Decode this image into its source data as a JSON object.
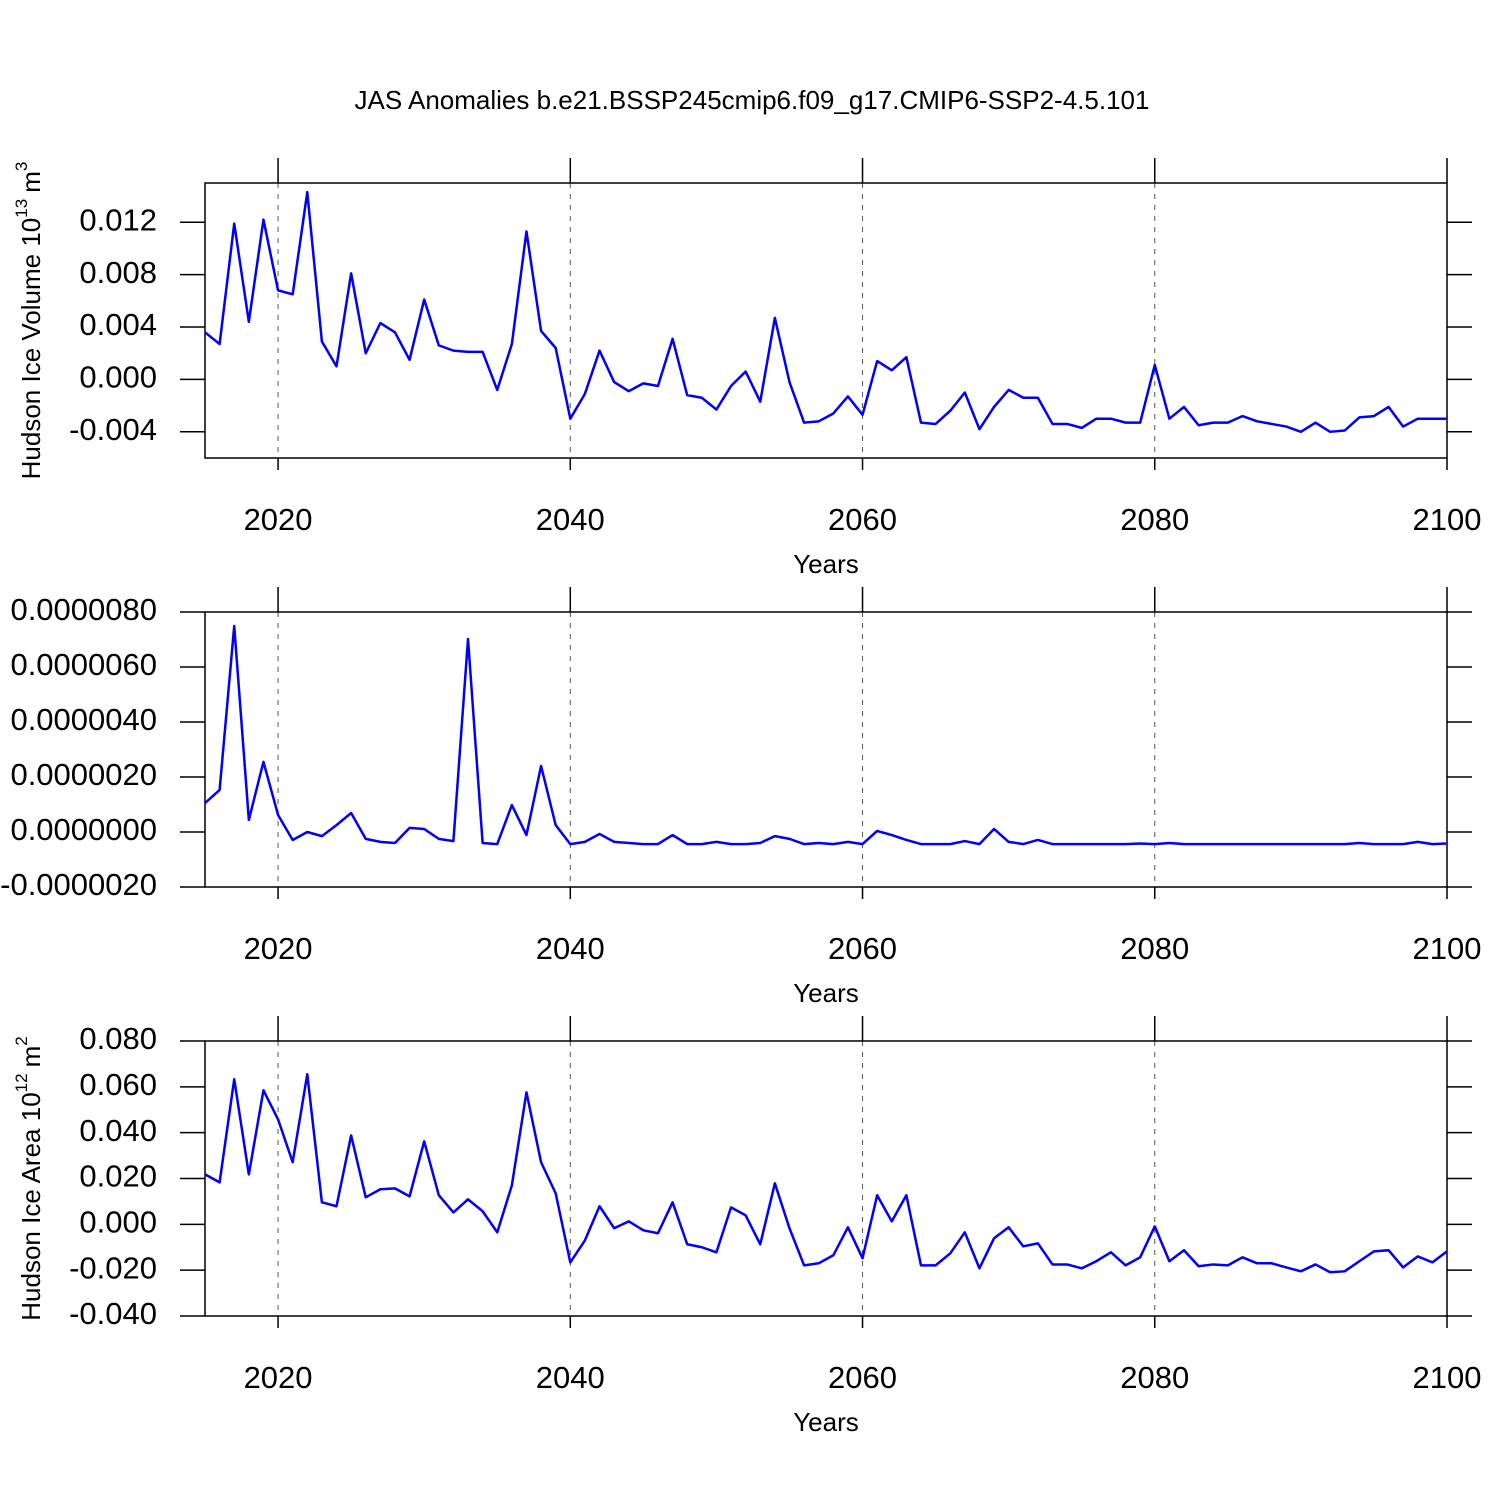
{
  "chart_data": [
    {
      "type": "line",
      "title": "JAS Anomalies b.e21.BSSP245cmip6.f09_g17.CMIP6-SSP2-4.5.101",
      "y_label": [
        "Hudson Ice Volume 10",
        "13",
        "m",
        "3"
      ],
      "x_label": "Years",
      "x": [
        2015,
        2016,
        2017,
        2018,
        2019,
        2020,
        2021,
        2022,
        2023,
        2024,
        2025,
        2026,
        2027,
        2028,
        2029,
        2030,
        2031,
        2032,
        2033,
        2034,
        2035,
        2036,
        2037,
        2038,
        2039,
        2040,
        2041,
        2042,
        2043,
        2044,
        2045,
        2046,
        2047,
        2048,
        2049,
        2050,
        2051,
        2052,
        2053,
        2054,
        2055,
        2056,
        2057,
        2058,
        2059,
        2060,
        2061,
        2062,
        2063,
        2064,
        2065,
        2066,
        2067,
        2068,
        2069,
        2070,
        2071,
        2072,
        2073,
        2074,
        2075,
        2076,
        2077,
        2078,
        2079,
        2080,
        2081,
        2082,
        2083,
        2084,
        2085,
        2086,
        2087,
        2088,
        2089,
        2090,
        2091,
        2092,
        2093,
        2094,
        2095,
        2096,
        2097,
        2098,
        2099,
        2100
      ],
      "values": [
        0.0036,
        0.0027,
        0.0119,
        0.0044,
        0.0122,
        0.0068,
        0.0065,
        0.0143,
        0.0029,
        0.001,
        0.0081,
        0.002,
        0.0043,
        0.0036,
        0.0015,
        0.0061,
        0.0026,
        0.0022,
        0.0021,
        0.0021,
        -0.0008,
        0.0027,
        0.0113,
        0.0037,
        0.0024,
        -0.003,
        -0.0011,
        0.0022,
        -0.0002,
        -0.0009,
        -0.0003,
        -0.0005,
        0.0031,
        -0.0012,
        -0.0014,
        -0.0023,
        -0.0005,
        0.0006,
        -0.0017,
        0.0047,
        -0.0002,
        -0.0033,
        -0.0032,
        -0.0026,
        -0.0013,
        -0.0027,
        0.0014,
        0.0007,
        0.0017,
        -0.0033,
        -0.0034,
        -0.0024,
        -0.001,
        -0.0038,
        -0.0021,
        -0.0008,
        -0.0014,
        -0.0014,
        -0.0034,
        -0.0034,
        -0.0037,
        -0.003,
        -0.003,
        -0.0033,
        -0.0033,
        0.0011,
        -0.003,
        -0.0021,
        -0.0035,
        -0.0033,
        -0.0033,
        -0.0028,
        -0.0032,
        -0.0034,
        -0.0036,
        -0.004,
        -0.0033,
        -0.004,
        -0.0039,
        -0.0029,
        -0.0028,
        -0.0021,
        -0.0036,
        -0.003,
        -0.003,
        -0.003
      ],
      "color": "#0000ff",
      "xlim": [
        2015,
        2100
      ],
      "xticks": [
        2020,
        2040,
        2060,
        2080,
        2100
      ],
      "ylim": [
        -0.006,
        0.015
      ],
      "yticks": [
        {
          "value": -0.004,
          "label": "-0.004"
        },
        {
          "value": 0,
          "label": "0.000"
        },
        {
          "value": 0.004,
          "label": "0.004"
        },
        {
          "value": 0.008,
          "label": "0.008"
        },
        {
          "value": 0.012,
          "label": "0.012"
        }
      ],
      "grid": true
    },
    {
      "type": "line",
      "x_label": "Years",
      "x": [
        2015,
        2016,
        2017,
        2018,
        2019,
        2020,
        2021,
        2022,
        2023,
        2024,
        2025,
        2026,
        2027,
        2028,
        2029,
        2030,
        2031,
        2032,
        2033,
        2034,
        2035,
        2036,
        2037,
        2038,
        2039,
        2040,
        2041,
        2042,
        2043,
        2044,
        2045,
        2046,
        2047,
        2048,
        2049,
        2050,
        2051,
        2052,
        2053,
        2054,
        2055,
        2056,
        2057,
        2058,
        2059,
        2060,
        2061,
        2062,
        2063,
        2064,
        2065,
        2066,
        2067,
        2068,
        2069,
        2070,
        2071,
        2072,
        2073,
        2074,
        2075,
        2076,
        2077,
        2078,
        2079,
        2080,
        2081,
        2082,
        2083,
        2084,
        2085,
        2086,
        2087,
        2088,
        2089,
        2090,
        2091,
        2092,
        2093,
        2094,
        2095,
        2096,
        2097,
        2098,
        2099,
        2100
      ],
      "values": [
        1.05e-06,
        1.53e-06,
        7.49e-06,
        4.4e-07,
        2.55e-06,
        6.2e-07,
        -2.9e-07,
        0,
        -1.5e-07,
        2.5e-07,
        6.9e-07,
        -2.5e-07,
        -3.6e-07,
        -4e-07,
        1.5e-07,
        1.1e-07,
        -2.5e-07,
        -3.3e-07,
        7.02e-06,
        -4e-07,
        -4.4e-07,
        9.8e-07,
        -1.1e-07,
        2.4e-06,
        2.5e-07,
        -4.4e-07,
        -3.6e-07,
        -7e-08,
        -3.6e-07,
        -4e-07,
        -4.4e-07,
        -4.4e-07,
        -1.1e-07,
        -4.4e-07,
        -4.4e-07,
        -3.6e-07,
        -4.4e-07,
        -4.4e-07,
        -4e-07,
        -1.5e-07,
        -2.5e-07,
        -4.4e-07,
        -4e-07,
        -4.4e-07,
        -3.6e-07,
        -4.4e-07,
        4e-08,
        -1.1e-07,
        -2.9e-07,
        -4.4e-07,
        -4.4e-07,
        -4.4e-07,
        -3.3e-07,
        -4.4e-07,
        1.1e-07,
        -3.6e-07,
        -4.4e-07,
        -2.9e-07,
        -4.4e-07,
        -4.4e-07,
        -4.4e-07,
        -4.4e-07,
        -4.4e-07,
        -4.4e-07,
        -4.2e-07,
        -4.4e-07,
        -4e-07,
        -4.4e-07,
        -4.4e-07,
        -4.4e-07,
        -4.4e-07,
        -4.4e-07,
        -4.4e-07,
        -4.4e-07,
        -4.4e-07,
        -4.4e-07,
        -4.4e-07,
        -4.4e-07,
        -4.4e-07,
        -4e-07,
        -4.4e-07,
        -4.4e-07,
        -4.4e-07,
        -3.6e-07,
        -4.4e-07,
        -4.2e-07
      ],
      "color": "#0000ff",
      "xlim": [
        2015,
        2100
      ],
      "xticks": [
        2020,
        2040,
        2060,
        2080,
        2100
      ],
      "ylim": [
        -2e-06,
        8e-06
      ],
      "yticks": [
        {
          "value": -2e-06,
          "label": "-0.0000020"
        },
        {
          "value": 0,
          "label": "0.0000000"
        },
        {
          "value": 2e-06,
          "label": "0.0000020"
        },
        {
          "value": 4e-06,
          "label": "0.0000040"
        },
        {
          "value": 6e-06,
          "label": "0.0000060"
        },
        {
          "value": 8e-06,
          "label": "0.0000080"
        }
      ],
      "grid": true
    },
    {
      "type": "line",
      "y_label": [
        "Hudson Ice Area 10",
        "12",
        "m",
        "2"
      ],
      "x_label": "Years",
      "x": [
        2015,
        2016,
        2017,
        2018,
        2019,
        2020,
        2021,
        2022,
        2023,
        2024,
        2025,
        2026,
        2027,
        2028,
        2029,
        2030,
        2031,
        2032,
        2033,
        2034,
        2035,
        2036,
        2037,
        2038,
        2039,
        2040,
        2041,
        2042,
        2043,
        2044,
        2045,
        2046,
        2047,
        2048,
        2049,
        2050,
        2051,
        2052,
        2053,
        2054,
        2055,
        2056,
        2057,
        2058,
        2059,
        2060,
        2061,
        2062,
        2063,
        2064,
        2065,
        2066,
        2067,
        2068,
        2069,
        2070,
        2071,
        2072,
        2073,
        2074,
        2075,
        2076,
        2077,
        2078,
        2079,
        2080,
        2081,
        2082,
        2083,
        2084,
        2085,
        2086,
        2087,
        2088,
        2089,
        2090,
        2091,
        2092,
        2093,
        2094,
        2095,
        2096,
        2097,
        2098,
        2099,
        2100
      ],
      "values": [
        0.0218,
        0.0183,
        0.0633,
        0.0218,
        0.0585,
        0.0458,
        0.0271,
        0.0655,
        0.0096,
        0.0079,
        0.0388,
        0.0118,
        0.0153,
        0.0157,
        0.0122,
        0.0362,
        0.0127,
        0.0052,
        0.0109,
        0.0057,
        -0.0035,
        0.017,
        0.0576,
        0.0271,
        0.0135,
        -0.0166,
        -0.007,
        0.0079,
        -0.0017,
        0.0013,
        -0.0026,
        -0.0039,
        0.0096,
        -0.0087,
        -0.01,
        -0.0122,
        0.0074,
        0.0039,
        -0.0087,
        0.0179,
        -0.0017,
        -0.0179,
        -0.017,
        -0.0135,
        -0.0013,
        -0.0148,
        0.0127,
        0.0013,
        0.0127,
        -0.0179,
        -0.0179,
        -0.0127,
        -0.0035,
        -0.0192,
        -0.0061,
        -0.0013,
        -0.0096,
        -0.0083,
        -0.0175,
        -0.0175,
        -0.0192,
        -0.0161,
        -0.0122,
        -0.0179,
        -0.0144,
        -0.0009,
        -0.0161,
        -0.0113,
        -0.0183,
        -0.0175,
        -0.0179,
        -0.0144,
        -0.017,
        -0.017,
        -0.0188,
        -0.0205,
        -0.0175,
        -0.0209,
        -0.0205,
        -0.0161,
        -0.0118,
        -0.0113,
        -0.0188,
        -0.014,
        -0.0166,
        -0.0118
      ],
      "color": "#0000ff",
      "xlim": [
        2015,
        2100
      ],
      "xticks": [
        2020,
        2040,
        2060,
        2080,
        2100
      ],
      "ylim": [
        -0.04,
        0.08
      ],
      "yticks": [
        {
          "value": -0.04,
          "label": "-0.040"
        },
        {
          "value": -0.02,
          "label": "-0.020"
        },
        {
          "value": 0,
          "label": "0.000"
        },
        {
          "value": 0.02,
          "label": "0.020"
        },
        {
          "value": 0.04,
          "label": "0.040"
        },
        {
          "value": 0.06,
          "label": "0.060"
        },
        {
          "value": 0.08,
          "label": "0.080"
        }
      ],
      "grid": true
    }
  ]
}
